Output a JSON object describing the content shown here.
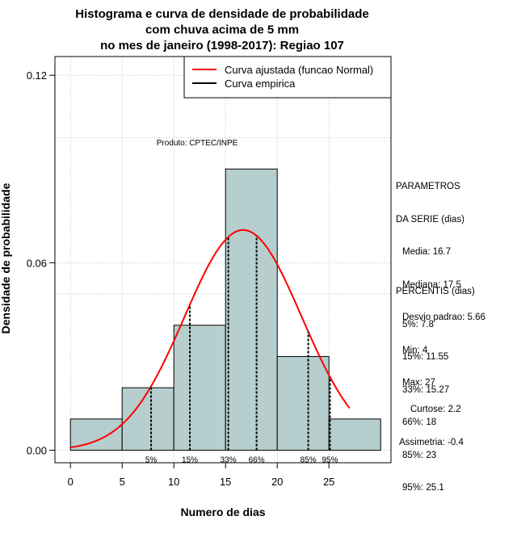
{
  "chart_data": {
    "type": "histogram",
    "title_lines": [
      "Histograma e curva de densidade de probabilidade",
      "com chuva acima de 5 mm",
      "no mes de janeiro (1998-2017): Regiao 107"
    ],
    "xlabel": "Numero de dias",
    "ylabel": "Densidade de probabilidade",
    "xlim": [
      -1.5,
      31
    ],
    "ylim": [
      -0.004,
      0.126
    ],
    "x_ticks": [
      0,
      5,
      10,
      15,
      20,
      25
    ],
    "y_ticks": [
      0.0,
      0.06,
      0.12
    ],
    "y_tick_labels": [
      "0.00",
      "0.06",
      "0.12"
    ],
    "gridlines_y": [
      0.1,
      0.05
    ],
    "bins": [
      {
        "from": 0,
        "to": 5,
        "density": 0.01
      },
      {
        "from": 5,
        "to": 10,
        "density": 0.02
      },
      {
        "from": 10,
        "to": 15,
        "density": 0.04
      },
      {
        "from": 15,
        "to": 20,
        "density": 0.09
      },
      {
        "from": 20,
        "to": 25,
        "density": 0.03
      },
      {
        "from": 25,
        "to": 30,
        "density": 0.01
      }
    ],
    "bar_color": "#b6cecd",
    "normal_curve": {
      "mean": 16.7,
      "sd": 5.66,
      "x_from": 0,
      "x_to": 27,
      "color": "#ff0000"
    },
    "percentile_markers": [
      {
        "label": "5%",
        "x": 7.8
      },
      {
        "label": "15%",
        "x": 11.55
      },
      {
        "label": "33%",
        "x": 15.27
      },
      {
        "label": "66%",
        "x": 18
      },
      {
        "label": "85%",
        "x": 23
      },
      {
        "label": "95%",
        "x": 25.1
      }
    ],
    "legend": [
      {
        "label": "Curva ajustada (funcao Normal)",
        "color": "#ff0000"
      },
      {
        "label": "Curva empirica",
        "color": "#000000"
      }
    ],
    "annotation": "Produto: CPTEC/INPE"
  },
  "side_panel": {
    "params_title": [
      "PARAMETROS",
      "DA SERIE (dias)"
    ],
    "params": [
      "Media: 16.7",
      "Mediana: 17.5",
      "Desvio padrao: 5.66",
      "Min: 4",
      "Max: 27"
    ],
    "perc_title": "PERCENTIS (dias)",
    "percentis": [
      "5%: 7.8",
      "15%: 11.55",
      "33%: 15.27",
      "66%: 18",
      "85%: 23",
      "95%: 25.1"
    ],
    "curtose": "Curtose: 2.2",
    "assimetria": "Assimetria: -0.4"
  }
}
